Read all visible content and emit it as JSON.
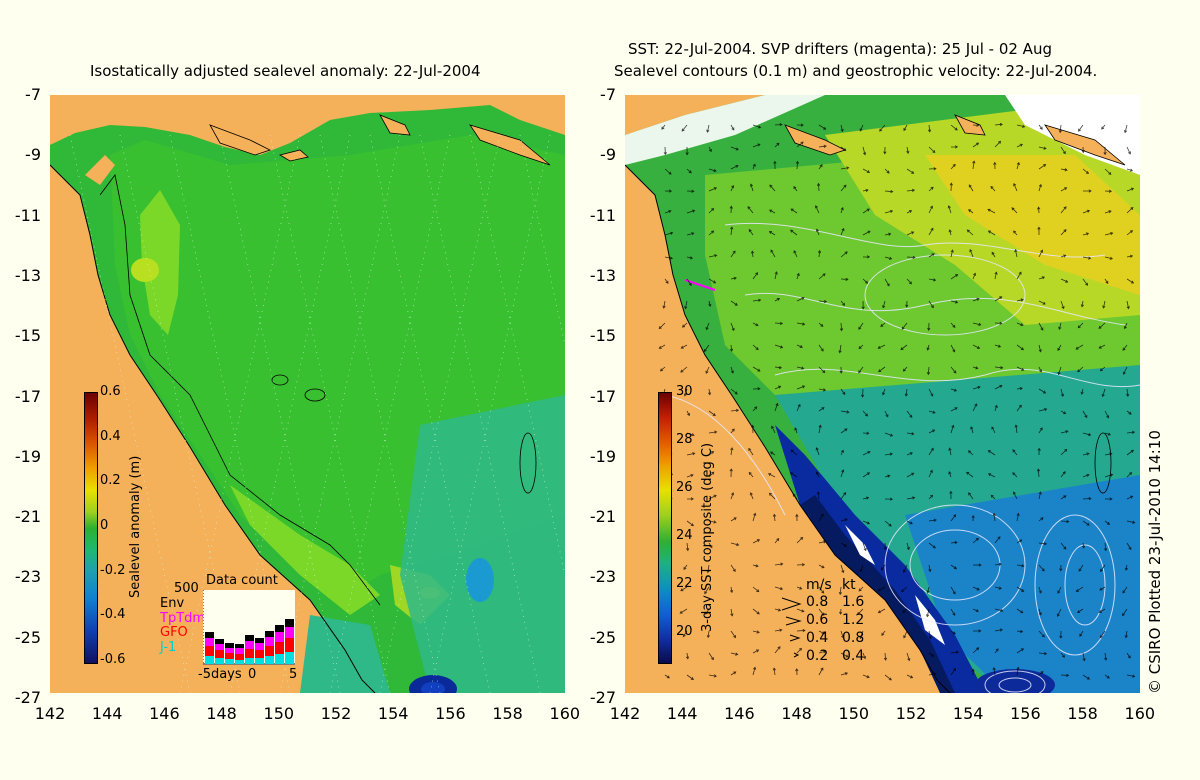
{
  "left_map": {
    "title": "Isostatically adjusted sealevel anomaly: 22-Jul-2004",
    "y_ticks": [
      "-7",
      "-9",
      "-11",
      "-13",
      "-15",
      "-17",
      "-19",
      "-21",
      "-23",
      "-25",
      "-27"
    ],
    "x_ticks": [
      "142",
      "144",
      "146",
      "148",
      "150",
      "152",
      "154",
      "156",
      "158",
      "160"
    ],
    "colorbar": {
      "label": "Sealevel anomaly (m)",
      "ticks": [
        "0.6",
        "0.4",
        "0.2",
        "0",
        "-0.2",
        "-0.4",
        "-0.6"
      ],
      "range": [
        -0.6,
        0.6
      ]
    },
    "data_count": {
      "title": "Data count",
      "max_label": "500",
      "legend": [
        {
          "label": "Env",
          "color": "#000000"
        },
        {
          "label": "TpTdm",
          "color": "#ff00ff"
        },
        {
          "label": "GFO",
          "color": "#ff0000"
        },
        {
          "label": "J-1",
          "color": "#00e0e0"
        }
      ],
      "x_labels": [
        "-5days",
        "0",
        "5"
      ]
    }
  },
  "right_map": {
    "title_line1": "SST: 22-Jul-2004. SVP drifters (magenta): 25 Jul - 02 Aug",
    "title_line2": "Sealevel contours (0.1 m) and geostrophic velocity: 22-Jul-2004.",
    "y_ticks": [
      "-7",
      "-9",
      "-11",
      "-13",
      "-15",
      "-17",
      "-19",
      "-21",
      "-23",
      "-25",
      "-27"
    ],
    "x_ticks": [
      "142",
      "144",
      "146",
      "148",
      "150",
      "152",
      "154",
      "156",
      "158",
      "160"
    ],
    "colorbar": {
      "label": "3-day SST composite (deg C)",
      "ticks": [
        "30",
        "28",
        "26",
        "24",
        "22",
        "20"
      ],
      "range": [
        19,
        30
      ]
    },
    "speed_legend": {
      "header_ms": "m/s",
      "header_kt": "kt",
      "rows": [
        {
          "ms": "0.8",
          "kt": "1.6"
        },
        {
          "ms": "0.6",
          "kt": "1.2"
        },
        {
          "ms": "0.4",
          "kt": "0.8"
        },
        {
          "ms": "0.2",
          "kt": "0.4"
        }
      ]
    }
  },
  "credit": "© CSIRO Plotted 23-Jul-2010 14:10",
  "colors": {
    "land": "#f5b05a",
    "background": "#fffff0"
  }
}
